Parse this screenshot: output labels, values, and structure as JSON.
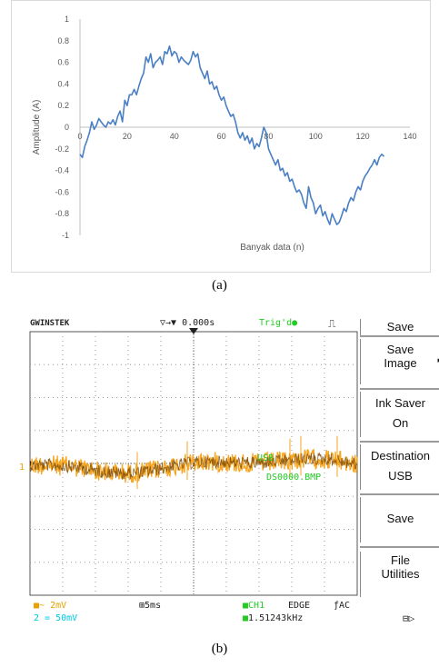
{
  "chart_data": {
    "type": "line",
    "xlabel": "Banyak data (n)",
    "ylabel": "Amplitude (A)",
    "xlim": [
      0,
      140
    ],
    "ylim": [
      -1,
      1
    ],
    "xticks": [
      0,
      20,
      40,
      60,
      80,
      100,
      120,
      140
    ],
    "yticks": [
      -1,
      -0.8,
      -0.6,
      -0.4,
      -0.2,
      0,
      0.2,
      0.4,
      0.6,
      0.8,
      1
    ],
    "grid": false,
    "series": [
      {
        "color": "#4a7fc4",
        "x": [
          0,
          1,
          2,
          3,
          4,
          5,
          6,
          7,
          8,
          9,
          10,
          11,
          12,
          13,
          14,
          15,
          16,
          17,
          18,
          19,
          20,
          21,
          22,
          23,
          24,
          25,
          26,
          27,
          28,
          29,
          30,
          31,
          32,
          33,
          34,
          35,
          36,
          37,
          38,
          39,
          40,
          41,
          42,
          43,
          44,
          45,
          46,
          47,
          48,
          49,
          50,
          51,
          52,
          53,
          54,
          55,
          56,
          57,
          58,
          59,
          60,
          61,
          62,
          63,
          64,
          65,
          66,
          67,
          68,
          69,
          70,
          71,
          72,
          73,
          74,
          75,
          76,
          77,
          78,
          79,
          80,
          81,
          82,
          83,
          84,
          85,
          86,
          87,
          88,
          89,
          90,
          91,
          92,
          93,
          94,
          95,
          96,
          97,
          98,
          99,
          100,
          101,
          102,
          103,
          104,
          105,
          106,
          107,
          108,
          109,
          110,
          111,
          112,
          113,
          114,
          115,
          116,
          117,
          118,
          119,
          120,
          121,
          122,
          123,
          124,
          125,
          126,
          127,
          128,
          129
        ],
        "y": [
          -0.25,
          -0.28,
          -0.18,
          -0.12,
          -0.05,
          0.05,
          -0.02,
          0.02,
          0.08,
          0.05,
          0.02,
          0.0,
          0.05,
          0.03,
          0.07,
          0.02,
          0.1,
          0.15,
          0.05,
          0.25,
          0.2,
          0.3,
          0.3,
          0.35,
          0.3,
          0.38,
          0.45,
          0.5,
          0.65,
          0.6,
          0.68,
          0.55,
          0.6,
          0.62,
          0.65,
          0.58,
          0.7,
          0.68,
          0.75,
          0.66,
          0.7,
          0.68,
          0.6,
          0.65,
          0.62,
          0.6,
          0.58,
          0.62,
          0.7,
          0.65,
          0.68,
          0.55,
          0.5,
          0.45,
          0.52,
          0.4,
          0.42,
          0.35,
          0.38,
          0.3,
          0.25,
          0.28,
          0.2,
          0.15,
          0.1,
          0.12,
          0.05,
          -0.05,
          -0.1,
          -0.05,
          -0.12,
          -0.08,
          -0.15,
          -0.1,
          -0.2,
          -0.15,
          -0.18,
          -0.1,
          0.0,
          -0.05,
          -0.2,
          -0.25,
          -0.3,
          -0.35,
          -0.3,
          -0.4,
          -0.38,
          -0.45,
          -0.42,
          -0.5,
          -0.48,
          -0.55,
          -0.6,
          -0.58,
          -0.62,
          -0.7,
          -0.75,
          -0.55,
          -0.65,
          -0.7,
          -0.8,
          -0.75,
          -0.72,
          -0.82,
          -0.78,
          -0.85,
          -0.9,
          -0.8,
          -0.85,
          -0.9,
          -0.88,
          -0.82,
          -0.75,
          -0.78,
          -0.7,
          -0.65,
          -0.68,
          -0.6,
          -0.55,
          -0.58,
          -0.5,
          -0.45,
          -0.42,
          -0.38,
          -0.35,
          -0.3,
          -0.35,
          -0.28,
          -0.25,
          -0.27
        ]
      }
    ]
  },
  "caption_a": "(a)",
  "caption_b": "(b)",
  "scope": {
    "brand": "GWINSTEK",
    "time_offset": "0.000s",
    "trigger_status": "Trig'd",
    "ch_marker": "1",
    "menu": {
      "title": "Save",
      "item1": [
        "Save",
        "Image"
      ],
      "item2": [
        "Ink Saver",
        "On"
      ],
      "item3": [
        "Destination",
        "USB"
      ],
      "item4": "Save",
      "item5": [
        "File",
        "Utilities"
      ]
    },
    "usb_line1": "USB",
    "usb_line2": "DS0000.BMP",
    "bottom": {
      "ch1_scale": "~ 2mV",
      "ch2_scale": "= 50mV",
      "timebase": "5ms",
      "trig_src": "CH1",
      "trig_type": "EDGE",
      "trig_coupling": "AC",
      "frequency": "1.51243kHz"
    },
    "colors": {
      "trace_orange": "#f5a623",
      "trace_dark": "#7a4a0a",
      "text_green": "#22cc22",
      "text_cyan": "#00c8e0",
      "text_orange": "#e8a000"
    }
  }
}
